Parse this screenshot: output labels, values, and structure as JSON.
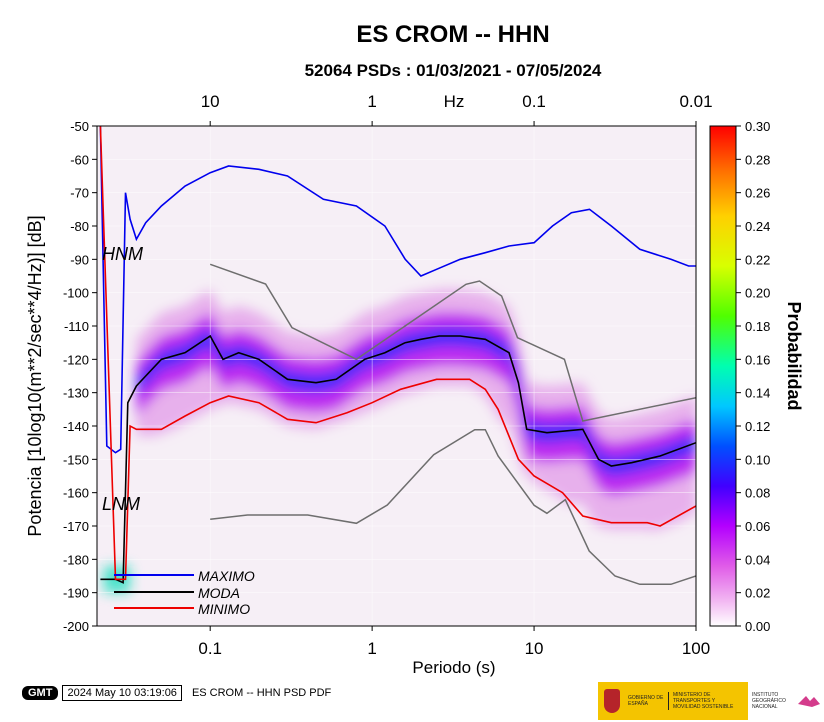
{
  "chart_data": {
    "type": "heatmap",
    "title": "ES CROM -- HHN",
    "subtitle": "52064 PSDs : 01/03/2021 - 07/05/2024",
    "xlabel": "Periodo (s)",
    "ylabel": "Potencia [10log10(m**2/sec**4/Hz)] [dB]",
    "top_axis_label": "Hz",
    "x_scale": "log",
    "xlim": [
      0.02,
      100
    ],
    "ylim": [
      -200,
      -50
    ],
    "x_ticks": [
      "0.1",
      "1",
      "10",
      "100"
    ],
    "top_ticks": [
      "10",
      "1",
      "0.1",
      "0.01"
    ],
    "y_ticks": [
      "-50",
      "-60",
      "-70",
      "-80",
      "-90",
      "-100",
      "-110",
      "-120",
      "-130",
      "-140",
      "-150",
      "-160",
      "-170",
      "-180",
      "-190",
      "-200"
    ],
    "colorbar": {
      "label": "Probabilidad",
      "range": [
        0,
        0.3
      ],
      "ticks": [
        "0.00",
        "0.02",
        "0.04",
        "0.06",
        "0.08",
        "0.10",
        "0.12",
        "0.14",
        "0.16",
        "0.18",
        "0.20",
        "0.22",
        "0.24",
        "0.26",
        "0.28",
        "0.30"
      ]
    },
    "annotations": [
      "HNM",
      "LNM"
    ],
    "legend": {
      "placement": "bottom-left",
      "entries": [
        {
          "name": "MAXIMO",
          "color": "#0000ee"
        },
        {
          "name": "MODA",
          "color": "#000000"
        },
        {
          "name": "MINIMO",
          "color": "#ee0000"
        }
      ]
    },
    "series": [
      {
        "name": "MAXIMO",
        "color": "#0000ee",
        "x": [
          0.021,
          0.023,
          0.026,
          0.028,
          0.03,
          0.032,
          0.035,
          0.04,
          0.05,
          0.07,
          0.1,
          0.13,
          0.2,
          0.3,
          0.5,
          0.8,
          1.2,
          1.6,
          2,
          2.5,
          3.5,
          5,
          7,
          10,
          13,
          17,
          22,
          30,
          45,
          70,
          90,
          100
        ],
        "y": [
          -50,
          -146,
          -148,
          -147,
          -70,
          -78,
          -84,
          -79,
          -74,
          -68,
          -64,
          -62,
          -63,
          -65,
          -72,
          -74,
          -80,
          -90,
          -95,
          -93,
          -90,
          -88,
          -86,
          -85,
          -80,
          -76,
          -75,
          -80,
          -87,
          -90,
          -92,
          -92
        ]
      },
      {
        "name": "MODA",
        "color": "#000000",
        "x": [
          0.021,
          0.026,
          0.029,
          0.031,
          0.035,
          0.04,
          0.05,
          0.07,
          0.1,
          0.12,
          0.15,
          0.2,
          0.3,
          0.45,
          0.6,
          0.9,
          1.2,
          1.6,
          2,
          2.6,
          3.5,
          5,
          7,
          8,
          9,
          12,
          20,
          25,
          30,
          40,
          60,
          100
        ],
        "y": [
          -186,
          -186,
          -187,
          -133,
          -128,
          -125,
          -120,
          -118,
          -113,
          -120,
          -118,
          -120,
          -126,
          -127,
          -126,
          -120,
          -118,
          -115,
          -114,
          -113,
          -113,
          -114,
          -118,
          -127,
          -141,
          -142,
          -141,
          -150,
          -152,
          -151,
          -149,
          -145
        ]
      },
      {
        "name": "MINIMO",
        "color": "#ee0000",
        "x": [
          0.021,
          0.026,
          0.03,
          0.032,
          0.035,
          0.05,
          0.07,
          0.1,
          0.13,
          0.2,
          0.3,
          0.45,
          0.7,
          1.0,
          1.5,
          2.5,
          4,
          5,
          6,
          8,
          10,
          15,
          20,
          30,
          50,
          60,
          100
        ],
        "y": [
          -50,
          -186,
          -186,
          -140,
          -141,
          -141,
          -137,
          -133,
          -131,
          -133,
          -138,
          -139,
          -136,
          -133,
          -129,
          -126,
          -126,
          -129,
          -135,
          -150,
          -155,
          -160,
          -167,
          -169,
          -169,
          -170,
          -164
        ]
      },
      {
        "name": "HNM",
        "color": "#6e6e6e",
        "x": [
          0.1,
          0.22,
          0.32,
          0.8,
          3.8,
          4.6,
          6.3,
          7.9,
          15.4,
          20,
          100
        ],
        "y": [
          -91.5,
          -97.4,
          -110.5,
          -120,
          -97.5,
          -96.5,
          -101,
          -113.5,
          -120,
          -138.5,
          -131.5
        ]
      },
      {
        "name": "LNM",
        "color": "#6e6e6e",
        "x": [
          0.1,
          0.17,
          0.4,
          0.8,
          1.24,
          2.4,
          4.3,
          5,
          6,
          10,
          12,
          15.6,
          21.9,
          31.6,
          45,
          70,
          100
        ],
        "y": [
          -168,
          -166.7,
          -166.7,
          -169.2,
          -163.7,
          -148.6,
          -141.1,
          -141.1,
          -149,
          -163.8,
          -166.2,
          -162.1,
          -177.5,
          -185,
          -187.5,
          -187.5,
          -185
        ]
      }
    ]
  },
  "footer": {
    "logo_text": "GMT",
    "timestamp": "2024 May 10 03:19:06",
    "caption": "ES CROM -- HHN PSD PDF",
    "gov_left": "GOBIERNO DE ESPAÑA",
    "gov_right": "MINISTERIO DE TRANSPORTES Y MOVILIDAD SOSTENIBLE",
    "ign": "INSTITUTO GEOGRÁFICO NACIONAL"
  }
}
